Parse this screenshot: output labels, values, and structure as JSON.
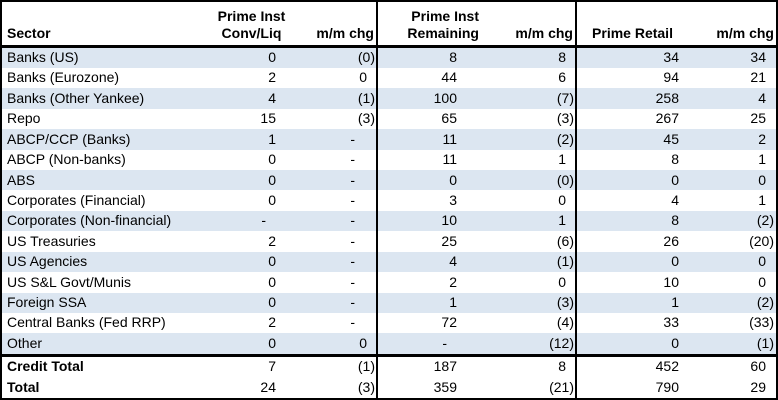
{
  "colors": {
    "stripe": "#dce6f1",
    "grid": "#000000",
    "background": "#ffffff",
    "text": "#000000"
  },
  "chart_data": {
    "type": "table",
    "title": "",
    "columns": [
      {
        "name": "sector",
        "lines": [
          "",
          "Sector"
        ]
      },
      {
        "name": "prime-inst-conv-liq",
        "lines": [
          "Prime Inst",
          "Conv/Liq"
        ]
      },
      {
        "name": "mm-chg-conv-liq",
        "lines": [
          "",
          "m/m chg"
        ]
      },
      {
        "name": "prime-inst-remaining",
        "lines": [
          "Prime Inst",
          "Remaining"
        ]
      },
      {
        "name": "mm-chg-remaining",
        "lines": [
          "",
          "m/m chg"
        ]
      },
      {
        "name": "prime-retail",
        "lines": [
          "",
          "Prime Retail"
        ]
      },
      {
        "name": "mm-chg-retail",
        "lines": [
          "",
          "m/m chg"
        ]
      }
    ],
    "rows": [
      {
        "sector": "Banks (US)",
        "values": [
          "0",
          "(0)",
          "8",
          "8",
          "34",
          "34"
        ],
        "section": "data"
      },
      {
        "sector": "Banks (Eurozone)",
        "values": [
          "2",
          "0",
          "44",
          "6",
          "94",
          "21"
        ],
        "section": "data"
      },
      {
        "sector": "Banks (Other Yankee)",
        "values": [
          "4",
          "(1)",
          "100",
          "(7)",
          "258",
          "4"
        ],
        "section": "data"
      },
      {
        "sector": "Repo",
        "values": [
          "15",
          "(3)",
          "65",
          "(3)",
          "267",
          "25"
        ],
        "section": "data"
      },
      {
        "sector": "ABCP/CCP (Banks)",
        "values": [
          "1",
          "-",
          "11",
          "(2)",
          "45",
          "2"
        ],
        "section": "data"
      },
      {
        "sector": "ABCP (Non-banks)",
        "values": [
          "0",
          "-",
          "11",
          "1",
          "8",
          "1"
        ],
        "section": "data"
      },
      {
        "sector": "ABS",
        "values": [
          "0",
          "-",
          "0",
          "(0)",
          "0",
          "0"
        ],
        "section": "data"
      },
      {
        "sector": "Corporates (Financial)",
        "values": [
          "0",
          "-",
          "3",
          "0",
          "4",
          "1"
        ],
        "section": "data"
      },
      {
        "sector": "Corporates (Non-financial)",
        "values": [
          "-",
          "-",
          "10",
          "1",
          "8",
          "(2)"
        ],
        "section": "data"
      },
      {
        "sector": "US Treasuries",
        "values": [
          "2",
          "-",
          "25",
          "(6)",
          "26",
          "(20)"
        ],
        "section": "data"
      },
      {
        "sector": "US Agencies",
        "values": [
          "0",
          "-",
          "4",
          "(1)",
          "0",
          "0"
        ],
        "section": "data"
      },
      {
        "sector": "US S&L Govt/Munis",
        "values": [
          "0",
          "-",
          "2",
          "0",
          "10",
          "0"
        ],
        "section": "data"
      },
      {
        "sector": "Foreign SSA",
        "values": [
          "0",
          "-",
          "1",
          "(3)",
          "1",
          "(2)"
        ],
        "section": "data"
      },
      {
        "sector": "Central Banks (Fed RRP)",
        "values": [
          "2",
          "-",
          "72",
          "(4)",
          "33",
          "(33)"
        ],
        "section": "data"
      },
      {
        "sector": "Other",
        "values": [
          "0",
          "0",
          "-",
          "(12)",
          "0",
          "(1)"
        ],
        "section": "data"
      },
      {
        "sector": "Credit Total",
        "values": [
          "7",
          "(1)",
          "187",
          "8",
          "452",
          "60"
        ],
        "section": "total"
      },
      {
        "sector": "Total",
        "values": [
          "24",
          "(3)",
          "359",
          "(21)",
          "790",
          "29"
        ],
        "section": "total"
      }
    ]
  }
}
